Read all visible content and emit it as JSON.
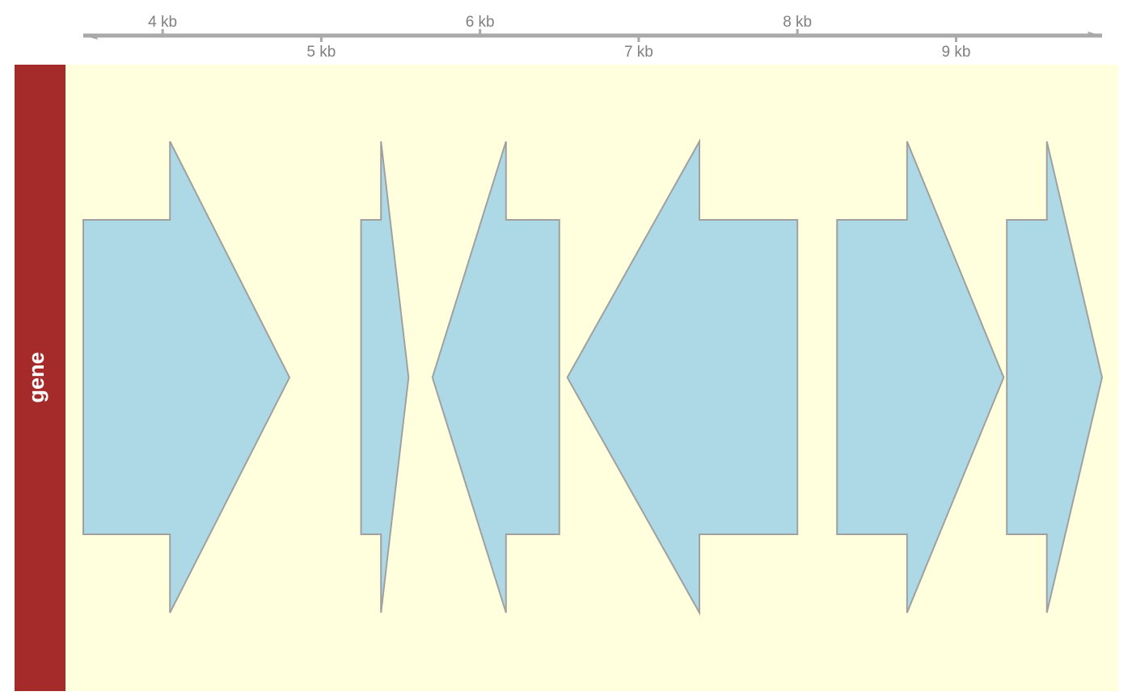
{
  "axis": {
    "unit": "kb",
    "range_bp": [
      3500,
      9920
    ],
    "ticks_bp": [
      4000,
      5000,
      6000,
      7000,
      8000,
      9000
    ],
    "tick_labels": [
      "4 kb",
      "5 kb",
      "6 kb",
      "7 kb",
      "8 kb",
      "9 kb"
    ],
    "label_placement": "alternating above and below the axis line",
    "arrowheads": "both ends"
  },
  "track": {
    "title": "gene",
    "title_background": "#a52a2a",
    "title_color": "#ffffff",
    "background": "#ffffdd"
  },
  "genes": [
    {
      "start_bp": 3500,
      "end_bp": 4800,
      "strand": "+"
    },
    {
      "start_bp": 5250,
      "end_bp": 5550,
      "strand": "+"
    },
    {
      "start_bp": 5700,
      "end_bp": 6500,
      "strand": "-"
    },
    {
      "start_bp": 6550,
      "end_bp": 8000,
      "strand": "-"
    },
    {
      "start_bp": 8250,
      "end_bp": 9300,
      "strand": "+"
    },
    {
      "start_bp": 9320,
      "end_bp": 9920,
      "strand": "+"
    }
  ],
  "colors": {
    "gene_fill": "#add8e6",
    "gene_border": "#a0a0a0",
    "axis": "#a9a9a9",
    "tick_label": "#808080"
  }
}
